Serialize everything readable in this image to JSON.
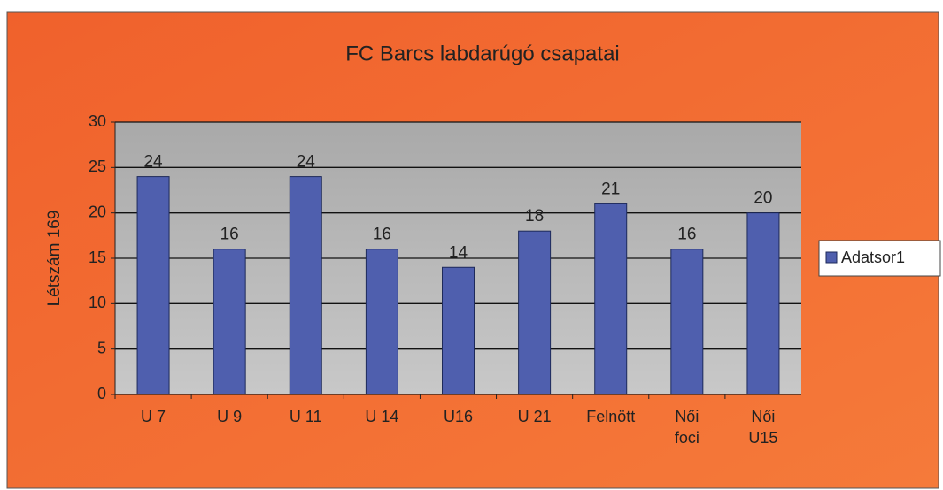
{
  "chart_data": {
    "type": "bar",
    "title": "FC Barcs labdarúgó csapatai",
    "ylabel": "Létszám 169",
    "categories": [
      [
        "U 7"
      ],
      [
        "U 9"
      ],
      [
        "U 11"
      ],
      [
        "U 14"
      ],
      [
        "U16"
      ],
      [
        "U 21"
      ],
      [
        "Felnött"
      ],
      [
        "Női",
        "foci"
      ],
      [
        "Női",
        "U15"
      ]
    ],
    "series": [
      {
        "name": "Adatsor1",
        "color": "#4f5fae",
        "values": [
          24,
          16,
          24,
          16,
          14,
          18,
          21,
          16,
          20
        ]
      }
    ],
    "ylim": [
      0,
      30
    ],
    "yticks": [
      0,
      5,
      10,
      15,
      20,
      25,
      30
    ],
    "grid": true,
    "legend": "right"
  }
}
